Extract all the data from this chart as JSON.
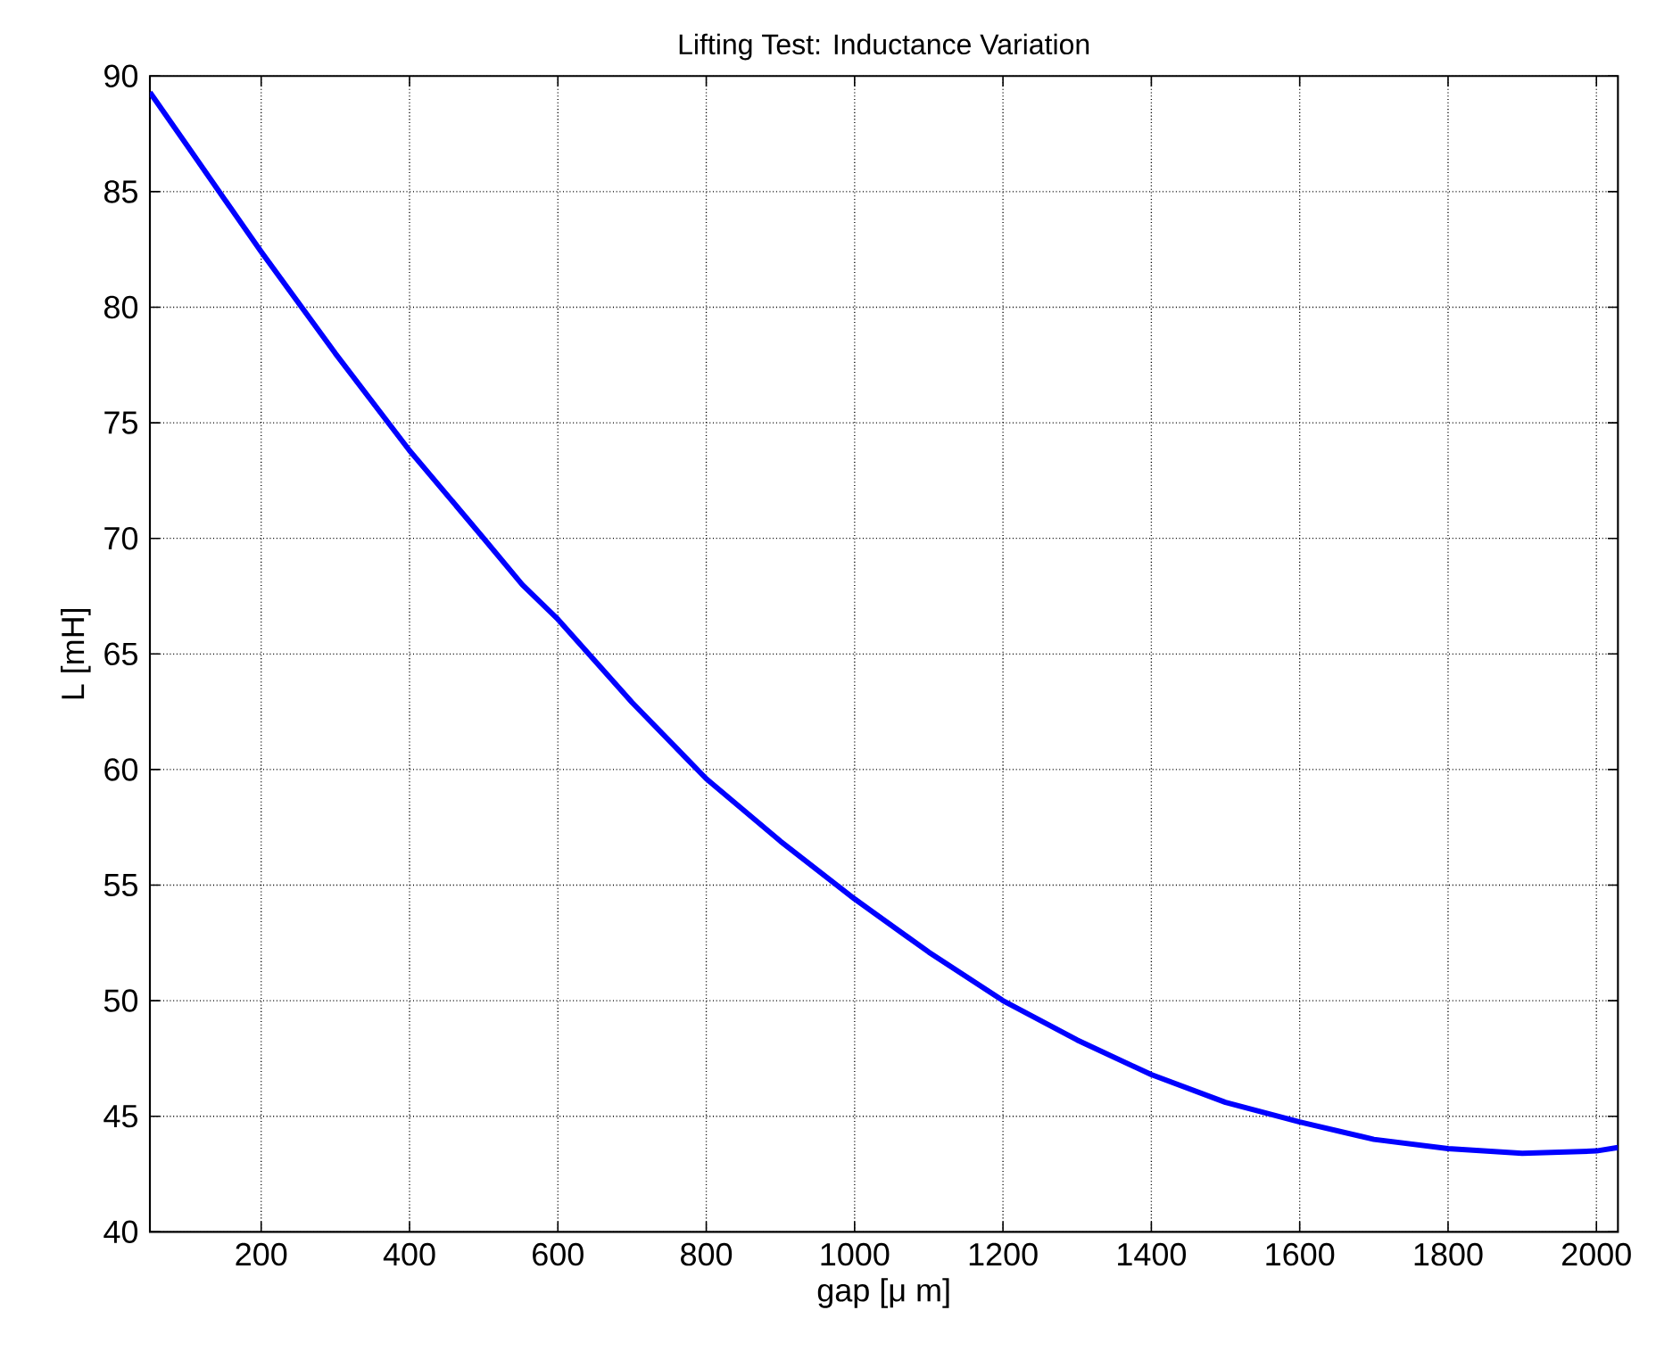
{
  "chart_data": {
    "type": "line",
    "title": "Lifting Test: Inductance Variation",
    "xlabel": "gap [μ m]",
    "ylabel": "L [mH]",
    "x": [
      50,
      100,
      200,
      300,
      400,
      500,
      552,
      600,
      700,
      800,
      900,
      1000,
      1100,
      1200,
      1300,
      1400,
      1500,
      1600,
      1700,
      1800,
      1900,
      2000,
      2029
    ],
    "series": [
      {
        "color": "#0000ff",
        "values": [
          89.3,
          87.0,
          82.4,
          78.0,
          73.8,
          70.0,
          68.0,
          66.5,
          62.9,
          59.6,
          56.9,
          54.4,
          52.1,
          50.0,
          48.3,
          46.8,
          45.6,
          44.75,
          44.0,
          43.6,
          43.4,
          43.5,
          43.65
        ]
      }
    ],
    "xlim": [
      50,
      2029
    ],
    "ylim": [
      40,
      90
    ],
    "xticks": [
      200,
      400,
      600,
      800,
      1000,
      1200,
      1400,
      1600,
      1800,
      2000
    ],
    "yticks": [
      40,
      45,
      50,
      55,
      60,
      65,
      70,
      75,
      80,
      85,
      90
    ],
    "grid": true,
    "line_style": "solid",
    "marker": "none"
  }
}
